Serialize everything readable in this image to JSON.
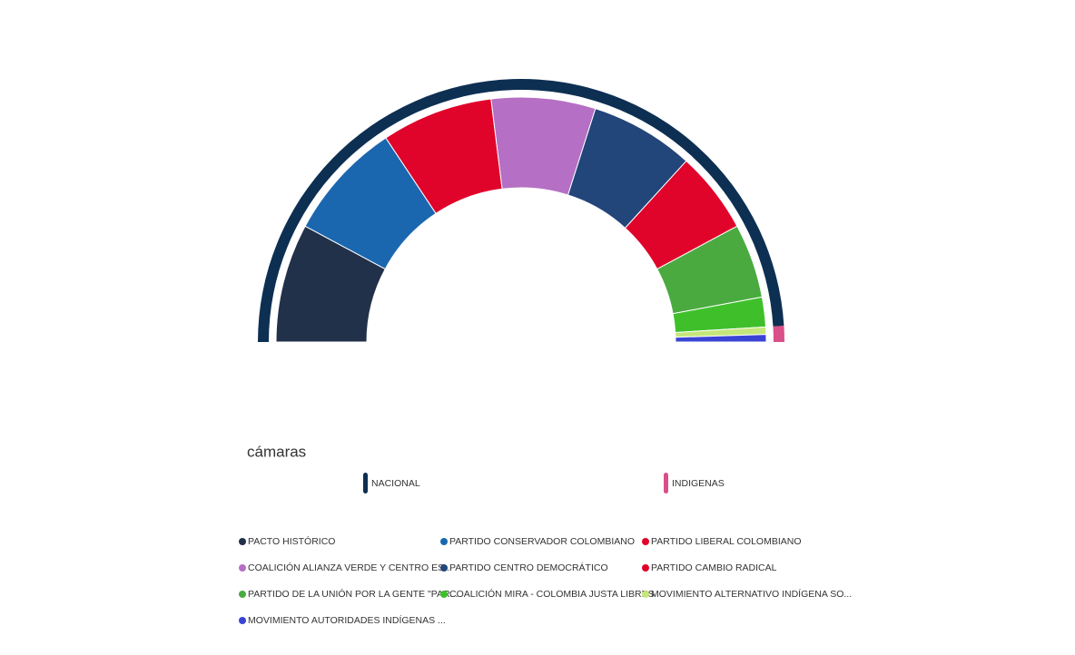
{
  "chart_data": {
    "type": "pie",
    "half": true,
    "title": "cámaras",
    "categories": [
      "PACTO HISTÓRICO",
      "PARTIDO CONSERVADOR COLOMBIANO",
      "PARTIDO LIBERAL COLOMBIANO",
      "COALICIÓN ALIANZA VERDE Y CENTRO ES...",
      "PARTIDO CENTRO DEMOCRÁTICO",
      "PARTIDO CAMBIO RADICAL",
      "PARTIDO DE LA UNIÓN POR LA GENTE \"PAR...",
      "COALICIÓN MIRA - COLOMBIA JUSTA LIBRES",
      "MOVIMIENTO ALTERNATIVO INDÍGENA SO...",
      "MOVIMIENTO AUTORIDADES INDÍGENAS ..."
    ],
    "values": [
      16,
      16,
      15,
      14,
      14,
      11,
      10,
      4,
      1,
      1
    ],
    "colors": [
      "#22314a",
      "#1a67b0",
      "#e0042a",
      "#b56fc4",
      "#22457a",
      "#e0042a",
      "#4aaa40",
      "#3fc02b",
      "#c5e67a",
      "#3a44d4"
    ],
    "outer": {
      "categories": [
        "NACIONAL",
        "INDIGENAS"
      ],
      "values": [
        100,
        2
      ],
      "colors": [
        "#0d2f52",
        "#d94f87"
      ]
    }
  }
}
